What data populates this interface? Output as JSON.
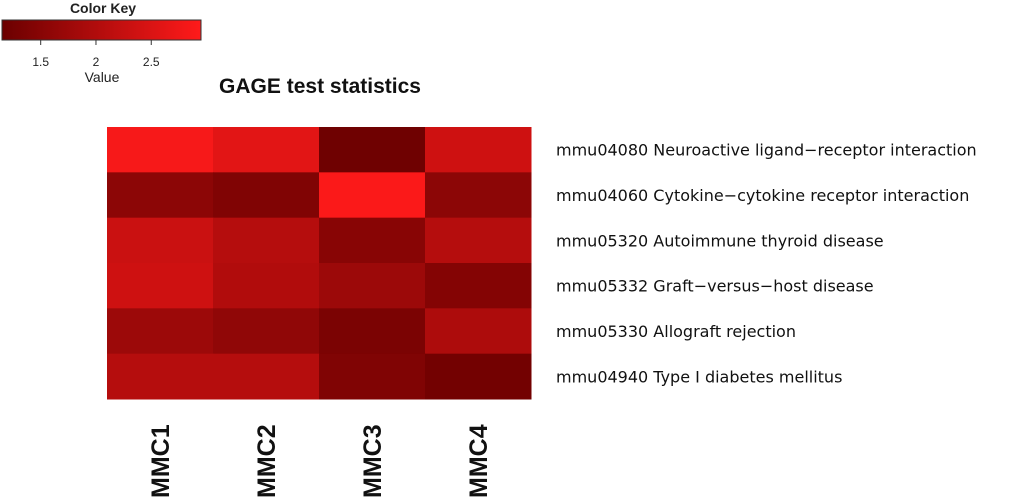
{
  "chart_data": {
    "type": "heatmap",
    "title": "GAGE test statistics",
    "columns": [
      "MMC1",
      "MMC2",
      "MMC3",
      "MMC4"
    ],
    "rows": [
      "mmu04080 Neuroactive ligand−receptor interaction",
      "mmu04060 Cytokine−cytokine receptor interaction",
      "mmu05320 Autoimmune thyroid disease",
      "mmu05332 Graft−versus−host disease",
      "mmu05330 Allograft rejection",
      "mmu04940 Type I diabetes mellitus"
    ],
    "values": [
      [
        2.85,
        2.6,
        1.2,
        2.35
      ],
      [
        1.55,
        1.4,
        2.9,
        1.55
      ],
      [
        2.3,
        2.05,
        1.5,
        2.05
      ],
      [
        2.35,
        2.0,
        1.75,
        1.45
      ],
      [
        1.75,
        1.6,
        1.35,
        1.95
      ],
      [
        2.05,
        2.05,
        1.4,
        1.25
      ]
    ],
    "color_key": {
      "title": "Color Key",
      "label": "Value",
      "ticks": [
        1.5,
        2,
        2.5
      ],
      "tick_labels": [
        "1.5",
        "2",
        "2.5"
      ],
      "range": [
        1.15,
        2.95
      ],
      "low_color": "#6b0000",
      "high_color": "#ff1a1a"
    }
  }
}
